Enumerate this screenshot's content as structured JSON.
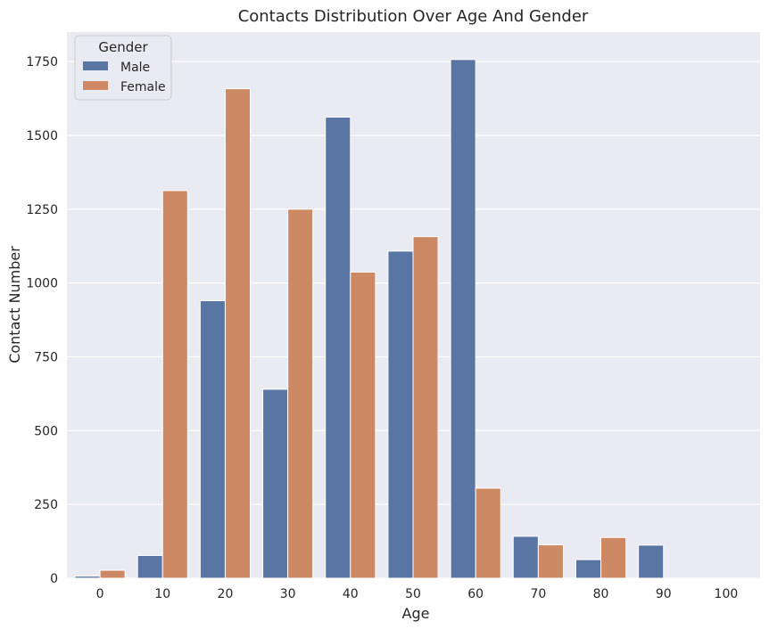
{
  "chart_data": {
    "type": "bar",
    "title": "Contacts Distribution Over Age And Gender",
    "xlabel": "Age",
    "ylabel": "Contact Number",
    "categories": [
      "0",
      "10",
      "20",
      "30",
      "40",
      "50",
      "60",
      "70",
      "80",
      "90",
      "100"
    ],
    "series": [
      {
        "name": "Male",
        "color": "#5975a4",
        "values": [
          7,
          77,
          940,
          640,
          1562,
          1108,
          1757,
          142,
          63,
          112,
          0
        ]
      },
      {
        "name": "Female",
        "color": "#cc8963",
        "values": [
          27,
          1313,
          1658,
          1250,
          1037,
          1157,
          305,
          113,
          138,
          0,
          0
        ]
      }
    ],
    "yticks": [
      0,
      250,
      500,
      750,
      1000,
      1250,
      1500,
      1750
    ],
    "ylim": [
      0,
      1850
    ],
    "grid": true,
    "legend": {
      "title": "Gender",
      "placement": "top-left"
    },
    "colors": {
      "plot_background": "#eaeaf2",
      "grid": "#ffffff"
    }
  }
}
